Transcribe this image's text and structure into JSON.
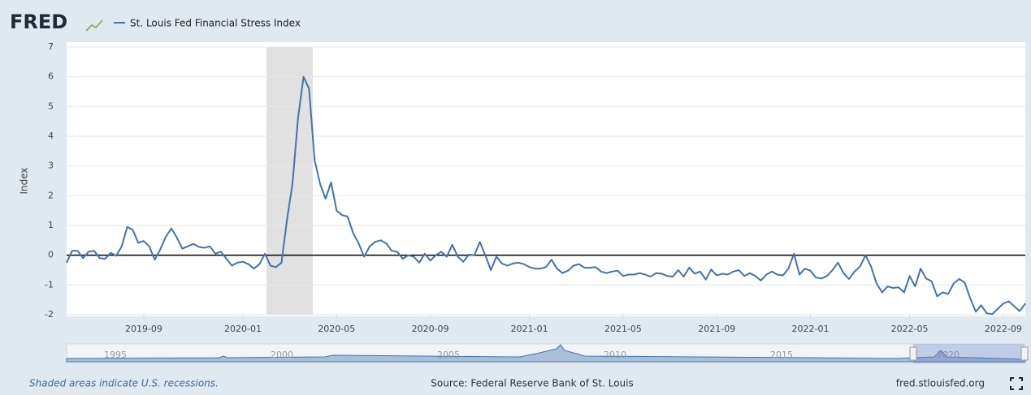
{
  "logo": "FRED",
  "chart_data": {
    "type": "line",
    "y_label": "Index",
    "categories": [
      null,
      null,
      null,
      null,
      null,
      null,
      null,
      null,
      null,
      null,
      null,
      null,
      null,
      null,
      "2019-09",
      null,
      null,
      null,
      null,
      null,
      null,
      null,
      null,
      null,
      null,
      null,
      null,
      null,
      null,
      null,
      null,
      null,
      "2020-01",
      null,
      null,
      null,
      null,
      null,
      null,
      null,
      null,
      null,
      null,
      null,
      null,
      null,
      null,
      null,
      null,
      "2020-05",
      null,
      null,
      null,
      null,
      null,
      null,
      null,
      null,
      null,
      null,
      null,
      null,
      null,
      null,
      null,
      null,
      "2020-09",
      null,
      null,
      null,
      null,
      null,
      null,
      null,
      null,
      null,
      null,
      null,
      null,
      null,
      null,
      null,
      null,
      null,
      "2021-01",
      null,
      null,
      null,
      null,
      null,
      null,
      null,
      null,
      null,
      null,
      null,
      null,
      null,
      null,
      null,
      null,
      "2021-05",
      null,
      null,
      null,
      null,
      null,
      null,
      null,
      null,
      null,
      null,
      null,
      null,
      null,
      null,
      null,
      null,
      "2021-09",
      null,
      null,
      null,
      null,
      null,
      null,
      null,
      null,
      null,
      null,
      null,
      null,
      null,
      null,
      null,
      null,
      "2022-01",
      null,
      null,
      null,
      null,
      null,
      null,
      null,
      null,
      null,
      null,
      null,
      null,
      null,
      null,
      null,
      null,
      null,
      "2022-05",
      null,
      null,
      null,
      null,
      null,
      null,
      null,
      null,
      null,
      null,
      null,
      null,
      null,
      null,
      null,
      null,
      "2022-09",
      null,
      null,
      null,
      null
    ],
    "series": [
      {
        "name": "St. Louis Fed Financial Stress Index",
        "color": "#4572a7",
        "values": [
          -0.25,
          0.15,
          0.15,
          -0.1,
          0.12,
          0.15,
          -0.1,
          -0.12,
          0.08,
          -0.02,
          0.3,
          0.95,
          0.85,
          0.42,
          0.48,
          0.3,
          -0.15,
          0.2,
          0.62,
          0.9,
          0.6,
          0.22,
          0.3,
          0.38,
          0.28,
          0.25,
          0.3,
          0.05,
          0.12,
          -0.12,
          -0.35,
          -0.25,
          -0.22,
          -0.3,
          -0.45,
          -0.3,
          0.05,
          -0.35,
          -0.4,
          -0.25,
          1.2,
          2.4,
          4.6,
          6.0,
          5.6,
          3.2,
          2.4,
          1.9,
          2.45,
          1.5,
          1.35,
          1.3,
          0.75,
          0.4,
          -0.05,
          0.3,
          0.45,
          0.5,
          0.4,
          0.15,
          0.12,
          -0.12,
          0.0,
          -0.05,
          -0.25,
          0.05,
          -0.18,
          0.0,
          0.12,
          -0.05,
          0.35,
          -0.05,
          -0.22,
          0.02,
          0.0,
          0.45,
          0.0,
          -0.5,
          -0.05,
          -0.28,
          -0.35,
          -0.28,
          -0.25,
          -0.3,
          -0.4,
          -0.45,
          -0.45,
          -0.4,
          -0.15,
          -0.45,
          -0.6,
          -0.52,
          -0.35,
          -0.3,
          -0.42,
          -0.42,
          -0.4,
          -0.55,
          -0.6,
          -0.55,
          -0.52,
          -0.7,
          -0.65,
          -0.65,
          -0.6,
          -0.65,
          -0.72,
          -0.6,
          -0.62,
          -0.7,
          -0.72,
          -0.5,
          -0.72,
          -0.42,
          -0.62,
          -0.55,
          -0.82,
          -0.48,
          -0.68,
          -0.62,
          -0.65,
          -0.55,
          -0.5,
          -0.7,
          -0.6,
          -0.7,
          -0.85,
          -0.65,
          -0.55,
          -0.65,
          -0.68,
          -0.45,
          0.05,
          -0.65,
          -0.45,
          -0.52,
          -0.75,
          -0.78,
          -0.7,
          -0.5,
          -0.25,
          -0.6,
          -0.8,
          -0.55,
          -0.38,
          0.0,
          -0.38,
          -0.95,
          -1.25,
          -1.05,
          -1.1,
          -1.08,
          -1.25,
          -0.7,
          -1.05,
          -0.45,
          -0.78,
          -0.88,
          -1.38,
          -1.25,
          -1.3,
          -0.95,
          -0.8,
          -0.92,
          -1.45,
          -1.9,
          -1.68,
          -1.95,
          -1.98,
          -1.8,
          -1.62,
          -1.55,
          -1.72,
          -1.88,
          -1.62
        ]
      }
    ],
    "ylim": [
      -2,
      7
    ],
    "yticks": [
      -2,
      -1,
      0,
      1,
      2,
      3,
      4,
      5,
      6,
      7
    ],
    "grid": true,
    "navigator_labels": [
      "1995",
      "2000",
      "2005",
      "2010",
      "2015",
      "2020"
    ]
  },
  "footer": {
    "note": "Shaded areas indicate U.S. recessions.",
    "source": "Source: Federal Reserve Bank of St. Louis",
    "site": "fred.stlouisfed.org"
  }
}
